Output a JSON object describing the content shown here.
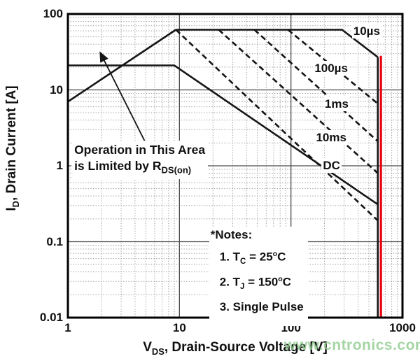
{
  "watermark": {
    "text": "www.cntronics.com",
    "color": "#8fcb8f"
  },
  "colors": {
    "curve": "#151515",
    "red_line": "#e8000f",
    "grid_major": "#4a4a4a",
    "grid_minor": "#9a9a9a",
    "border": "#000000",
    "text": "#111111"
  },
  "chart_data": {
    "type": "line",
    "title": "",
    "xlabel_pre": "V",
    "xlabel_sub": "DS",
    "xlabel_post": ", Drain-Source Voltage [V]",
    "ylabel_pre": "I",
    "ylabel_sub": "D",
    "ylabel_post": ", Drain Current [A]",
    "x_axis": {
      "scale": "log",
      "min": 1,
      "max": 1000,
      "tick_labels": [
        "1",
        "10",
        "100",
        "1000"
      ],
      "tick_values": [
        1,
        10,
        100,
        1000
      ]
    },
    "y_axis": {
      "scale": "log",
      "min": 0.01,
      "max": 100,
      "tick_labels": [
        "100",
        "10",
        "1",
        "0.1",
        "0.01"
      ],
      "tick_values": [
        100,
        10,
        1,
        0.1,
        0.01
      ]
    },
    "grid": "log-minor-dotted",
    "legend_position": "on-curve",
    "series": [
      {
        "name": "rdson-limit",
        "style": "solid",
        "label": "",
        "points": [
          [
            1,
            7
          ],
          [
            9.3,
            62
          ]
        ]
      },
      {
        "name": "10us",
        "style": "solid",
        "label": "10µs",
        "label_pos": [
          352,
          75
        ],
        "points": [
          [
            9.3,
            62
          ],
          [
            287,
            62
          ],
          [
            600,
            27
          ]
        ]
      },
      {
        "name": "100us",
        "style": "dashed",
        "label": "100µs",
        "label_pos": [
          158,
          24
        ],
        "points": [
          [
            94,
            62
          ],
          [
            600,
            6.6
          ]
        ]
      },
      {
        "name": "1ms",
        "style": "dashed",
        "label": "1ms",
        "label_pos": [
          195,
          8.2
        ],
        "points": [
          [
            47,
            62
          ],
          [
            600,
            2.1
          ]
        ]
      },
      {
        "name": "10ms",
        "style": "dashed",
        "label": "10ms",
        "label_pos": [
          163,
          2.95
        ],
        "points": [
          [
            22.5,
            62
          ],
          [
            600,
            0.8
          ]
        ]
      },
      {
        "name": "short-pulse-aux",
        "style": "dashed",
        "label": "",
        "points": [
          [
            9.3,
            62
          ],
          [
            600,
            0.19
          ]
        ]
      },
      {
        "name": "dc",
        "style": "solid",
        "label": "DC",
        "label_pos": [
          188,
          1.25
        ],
        "points": [
          [
            1,
            21
          ],
          [
            9,
            21
          ],
          [
            600,
            0.31
          ]
        ]
      },
      {
        "name": "vdss-boundary-600v",
        "style": "solid",
        "label": "",
        "points": [
          [
            600,
            27
          ],
          [
            600,
            0.01
          ]
        ]
      }
    ],
    "red_line_v": 600,
    "area_note": {
      "line1": "Operation in This Area",
      "line2_pre": "is Limited by R",
      "line2_sub": "DS(on)",
      "pos": [
        1.14,
        2.06
      ],
      "arrow_from": [
        4.9,
        2.1
      ],
      "arrow_to": [
        1.95,
        31
      ]
    },
    "notes": {
      "title": "*Notes:",
      "pos": [
        19,
        0.152
      ],
      "items": [
        {
          "parts": [
            {
              "t": "1. T"
            },
            {
              "sub": "C"
            },
            {
              "t": " = 25"
            },
            {
              "sup": "o"
            },
            {
              "t": "C"
            }
          ]
        },
        {
          "parts": [
            {
              "t": "2. T"
            },
            {
              "sub": "J"
            },
            {
              "t": " = 150"
            },
            {
              "sup": "o"
            },
            {
              "t": "C"
            }
          ]
        },
        {
          "parts": [
            {
              "t": "3. Single Pulse"
            }
          ]
        }
      ]
    }
  }
}
